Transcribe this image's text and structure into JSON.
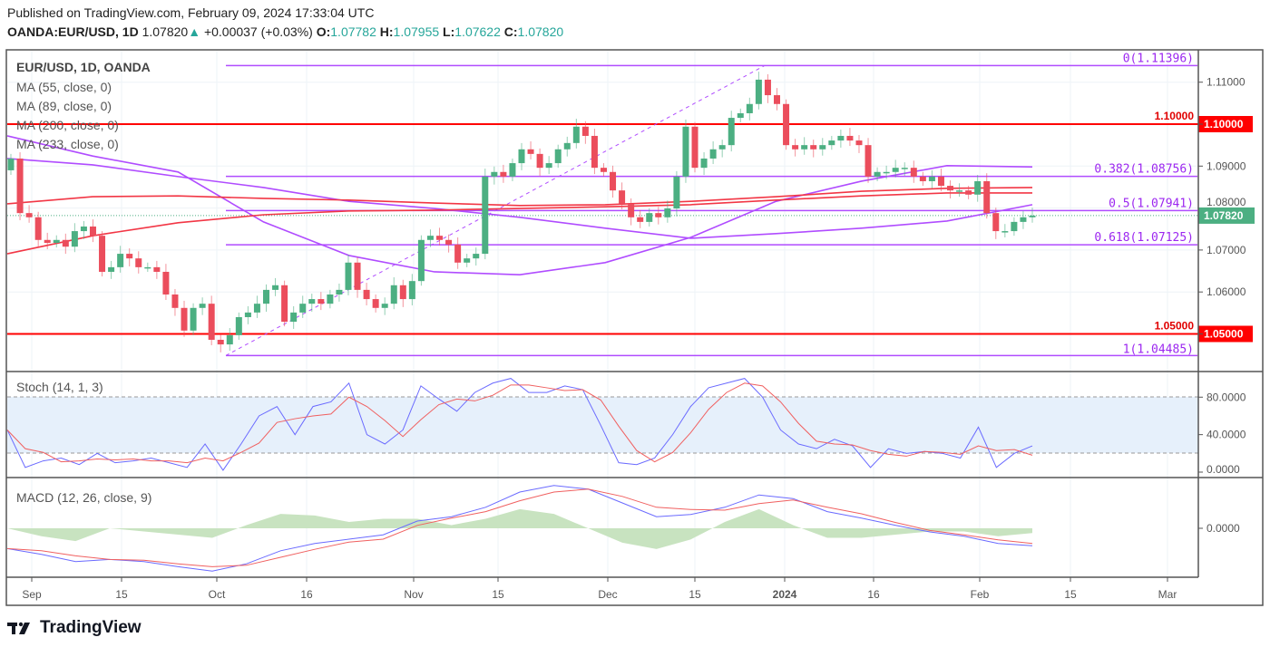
{
  "header": {
    "published": "Published on TradingView.com, February 09, 2024 17:33:04 UTC",
    "symbol": "OANDA:EUR/USD, 1D",
    "last": "1.07820",
    "change": "+0.00037 (+0.03%)",
    "o_label": "O:",
    "o": "1.07782",
    "h_label": "H:",
    "h": "1.07955",
    "l_label": "L:",
    "l": "1.07622",
    "c_label": "C:",
    "c": "1.07820"
  },
  "legend": {
    "title": "EUR/USD, 1D, OANDA",
    "ma55": "MA (55, close, 0)",
    "ma89": "MA (89, close, 0)",
    "ma200": "MA (200, close, 0)",
    "ma233": "MA (233, close, 0)",
    "stoch": "Stoch (14, 1, 3)",
    "macd": "MACD (12, 26, close, 9)"
  },
  "brand": "TradingView",
  "colors": {
    "up": "#4caf82",
    "down": "#eb4d5c",
    "ma_purple": "#b04cff",
    "ma_red": "#f23645",
    "fib": "#9c27f0",
    "level": "#ff0000",
    "stoch_k": "#6a6aff",
    "stoch_d": "#f06060",
    "hist": "#c8e3c0",
    "band": "#e6f0fb"
  },
  "chart_data": [
    {
      "type": "candlestick",
      "title": "EUR/USD, 1D, OANDA",
      "first_open": 1.089,
      "closes": [
        1.0918,
        1.0788,
        1.0778,
        1.0724,
        1.0717,
        1.0724,
        1.0708,
        1.0745,
        1.0756,
        1.0734,
        1.0648,
        1.0659,
        1.0691,
        1.068,
        1.0659,
        1.0659,
        1.0648,
        1.0594,
        1.0562,
        1.0508,
        1.0562,
        1.0572,
        1.0486,
        1.0475,
        1.0497,
        1.054,
        1.0551,
        1.0572,
        1.0605,
        1.0616,
        1.0529,
        1.0551,
        1.0572,
        1.0583,
        1.0572,
        1.0594,
        1.0605,
        1.067,
        1.0605,
        1.0583,
        1.0562,
        1.0572,
        1.0616,
        1.0583,
        1.0626,
        1.0724,
        1.0734,
        1.0724,
        1.0713,
        1.067,
        1.068,
        1.0691,
        1.0875,
        1.0886,
        1.0875,
        1.0907,
        1.094,
        1.0929,
        1.0896,
        1.0907,
        1.094,
        1.0955,
        1.0994,
        1.0972,
        1.0896,
        1.0886,
        1.0842,
        1.081,
        1.0778,
        1.0767,
        1.0788,
        1.0778,
        1.0799,
        1.0875,
        1.0994,
        1.0896,
        1.0918,
        1.094,
        1.095,
        1.1015,
        1.1026,
        1.1048,
        1.1106,
        1.1069,
        1.1048,
        1.095,
        1.094,
        1.095,
        1.094,
        1.095,
        1.0961,
        1.0972,
        1.0961,
        1.095,
        1.0875,
        1.0886,
        1.0886,
        1.0896,
        1.0896,
        1.0875,
        1.0864,
        1.0875,
        1.0853,
        1.0842,
        1.0842,
        1.0832,
        1.0864,
        1.0788,
        1.0745,
        1.0745,
        1.0767,
        1.0778,
        1.0782
      ],
      "moving_averages": {
        "ma55": [
          1.0972,
          1.0924,
          1.0886,
          1.0767,
          1.0687,
          1.0648,
          1.0641,
          1.067,
          1.073,
          1.0816,
          1.0864,
          1.0901,
          1.0898
        ],
        "ma89": [
          1.0918,
          1.0903,
          1.0875,
          1.0849,
          1.0816,
          1.0799,
          1.0778,
          1.0752,
          1.0728,
          1.0739,
          1.0752,
          1.0769,
          1.0808
        ],
        "ma200": [
          1.081,
          1.0827,
          1.0829,
          1.0823,
          1.0819,
          1.0812,
          1.0806,
          1.0808,
          1.0816,
          1.0827,
          1.084,
          1.0847,
          1.0849
        ],
        "ma233": [
          1.0691,
          1.0734,
          1.0765,
          1.0784,
          1.0793,
          1.0795,
          1.0799,
          1.0803,
          1.0808,
          1.0819,
          1.0829,
          1.0836,
          1.0836
        ]
      },
      "y_ticks": [
        "1.11000",
        "1.10000",
        "1.09000",
        "1.08000",
        "1.07000",
        "1.06000",
        "1.05000"
      ],
      "y_tick_values": [
        1.11,
        1.1,
        1.09,
        1.08,
        1.07,
        1.06,
        1.05
      ],
      "levels": [
        {
          "value": 1.1,
          "label": "1.10000"
        },
        {
          "value": 1.05,
          "label": "1.05000"
        }
      ],
      "last_price": {
        "value": 1.0782,
        "label": "1.07820"
      },
      "fibonacci": [
        {
          "ratio": "0",
          "value": 1.11396,
          "label": "0(1.11396)"
        },
        {
          "ratio": "0.382",
          "value": 1.08756,
          "label": "0.382(1.08756)"
        },
        {
          "ratio": "0.5",
          "value": 1.07941,
          "label": "0.5(1.07941)"
        },
        {
          "ratio": "0.618",
          "value": 1.07125,
          "label": "0.618(1.07125)"
        },
        {
          "ratio": "1",
          "value": 1.04485,
          "label": "1(1.04485)"
        }
      ],
      "fib_trend": {
        "from": 1.04485,
        "to": 1.11396
      },
      "x_ticks": [
        "Sep",
        "15",
        "Oct",
        "16",
        "Nov",
        "15",
        "Dec",
        "15",
        "2024",
        "16",
        "Feb",
        "15",
        "Mar"
      ]
    },
    {
      "type": "line",
      "title": "Stoch (14, 1, 3)",
      "ylim": [
        0,
        100
      ],
      "band": [
        20,
        80
      ],
      "y_ticks": [
        "80.0000",
        "40.0000",
        "0.0000"
      ],
      "y_tick_values": [
        80,
        40,
        0
      ],
      "series": [
        {
          "name": "%K",
          "values": [
            45,
            5,
            12,
            15,
            8,
            20,
            10,
            12,
            15,
            10,
            5,
            30,
            2,
            30,
            60,
            70,
            40,
            70,
            75,
            95,
            40,
            30,
            45,
            92,
            78,
            65,
            85,
            95,
            100,
            85,
            85,
            92,
            88,
            50,
            10,
            8,
            15,
            40,
            70,
            90,
            95,
            100,
            80,
            45,
            30,
            25,
            35,
            28,
            5,
            25,
            20,
            22,
            20,
            15,
            48,
            5,
            20,
            28
          ]
        },
        {
          "name": "%D",
          "values": [
            45,
            25,
            21,
            11,
            12,
            14,
            13,
            14,
            12,
            12,
            10,
            15,
            12,
            21,
            31,
            53,
            57,
            60,
            62,
            80,
            70,
            55,
            38,
            56,
            72,
            78,
            76,
            82,
            93,
            93,
            90,
            87,
            88,
            77,
            49,
            23,
            11,
            21,
            42,
            67,
            85,
            95,
            92,
            75,
            52,
            33,
            30,
            29,
            23,
            19,
            17,
            22,
            21,
            19,
            28,
            23,
            24,
            18
          ]
        }
      ]
    },
    {
      "type": "line",
      "title": "MACD (12, 26, close, 9)",
      "y_ticks": [
        "0.0000"
      ],
      "series": [
        {
          "name": "MACD",
          "values": [
            -0.0028,
            -0.0036,
            -0.0046,
            -0.0043,
            -0.0046,
            -0.0053,
            -0.0059,
            -0.0049,
            -0.0031,
            -0.0021,
            -0.0015,
            -0.0009,
            0.001,
            0.0016,
            0.0029,
            0.005,
            0.0059,
            0.0054,
            0.0035,
            0.0016,
            0.0019,
            0.0029,
            0.0046,
            0.0041,
            0.0023,
            0.0014,
            0.0004,
            -0.0005,
            -0.0011,
            -0.0021,
            -0.0024
          ]
        },
        {
          "name": "Signal",
          "values": [
            -0.0028,
            -0.0031,
            -0.0038,
            -0.0043,
            -0.0044,
            -0.0049,
            -0.0053,
            -0.0051,
            -0.004,
            -0.0029,
            -0.0019,
            -0.0015,
            0.0004,
            0.0014,
            0.0023,
            0.0038,
            0.005,
            0.0054,
            0.0044,
            0.0029,
            0.0026,
            0.0025,
            0.0034,
            0.0039,
            0.0029,
            0.002,
            0.0008,
            -0.0003,
            -0.0009,
            -0.0016,
            -0.0021
          ]
        },
        {
          "name": "Histogram",
          "values": [
            0.0,
            -0.0005,
            -0.0008,
            0.0,
            -0.0002,
            -0.0004,
            -0.0006,
            0.0002,
            0.0009,
            0.0008,
            0.0004,
            0.0006,
            0.0006,
            0.0002,
            0.0006,
            0.0012,
            0.0009,
            0.0,
            -0.0009,
            -0.0013,
            -0.0007,
            0.0004,
            0.0012,
            0.0002,
            -0.0006,
            -0.0006,
            -0.0004,
            -0.0002,
            -0.0002,
            -0.0005,
            -0.0003
          ]
        }
      ]
    }
  ]
}
